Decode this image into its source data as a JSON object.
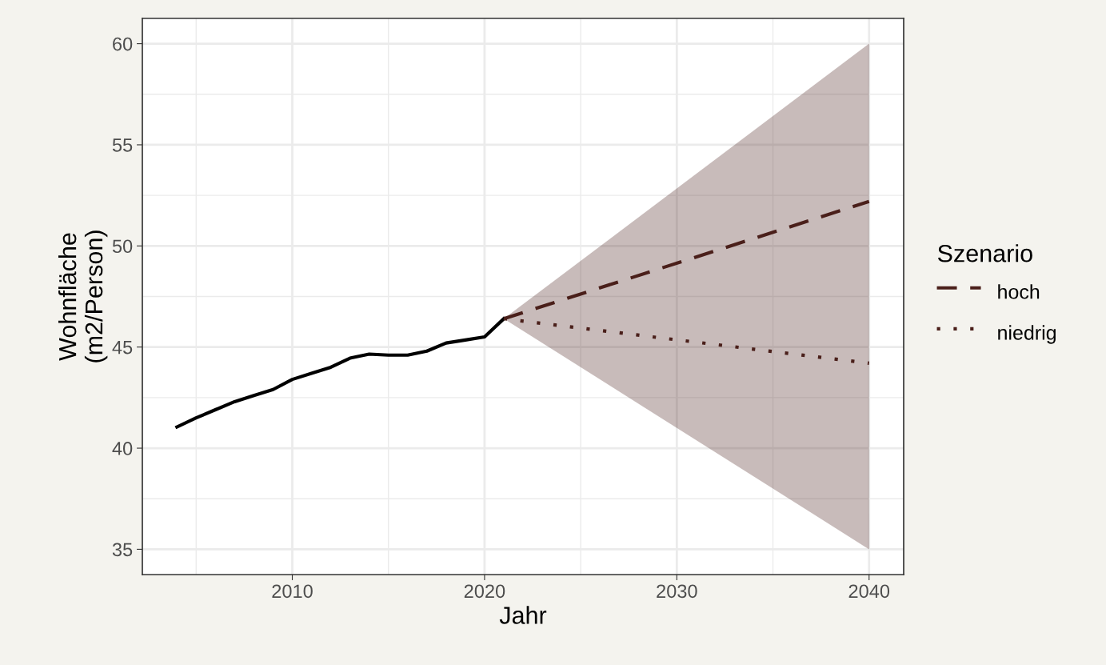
{
  "chart_data": {
    "type": "line",
    "xlabel": "Jahr",
    "ylabel": "Wohnfläche\n(m2/Person)",
    "legend_title": "Szenario",
    "legend": "right",
    "grid": true,
    "xlim": [
      2002.2,
      2041.8
    ],
    "xticks": [
      2010,
      2020,
      2030,
      2040
    ],
    "ylim": [
      33.75,
      61.25
    ],
    "yticks": [
      35,
      40,
      45,
      50,
      55,
      60
    ],
    "series": [
      {
        "color": "#000000",
        "line_style": "solid",
        "x": [
          2004,
          2005,
          2006,
          2007,
          2008,
          2009,
          2010,
          2011,
          2012,
          2013,
          2014,
          2015,
          2016,
          2017,
          2018,
          2019,
          2020,
          2021
        ],
        "values": [
          41.05,
          41.5,
          41.9,
          42.3,
          42.6,
          42.9,
          43.4,
          43.7,
          44.0,
          44.45,
          44.65,
          44.6,
          44.6,
          44.8,
          45.2,
          45.35,
          45.5,
          46.4
        ]
      },
      {
        "name": "hoch",
        "color": "#4a1f1a",
        "line_style": "dashed",
        "x": [
          2021,
          2040
        ],
        "values": [
          46.4,
          52.2
        ],
        "lower": [
          46.4,
          35
        ],
        "upper": [
          46.4,
          60
        ]
      },
      {
        "name": "niedrig",
        "color": "#4a1f1a",
        "line_style": "dotted",
        "x": [
          2021,
          2040
        ],
        "values": [
          46.4,
          44.2
        ]
      }
    ]
  }
}
